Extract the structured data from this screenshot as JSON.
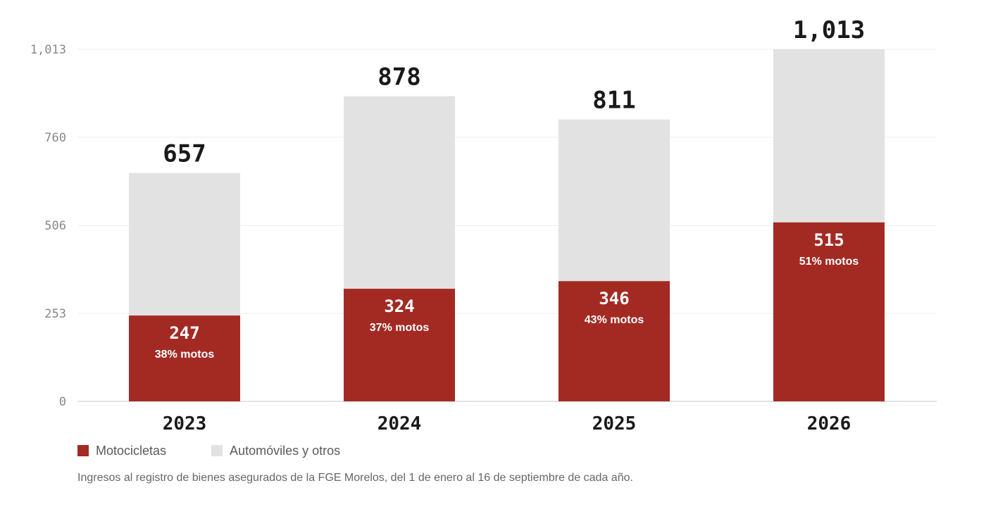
{
  "chart_data": {
    "type": "bar",
    "stacked": true,
    "categories": [
      "2023",
      "2024",
      "2025",
      "2026"
    ],
    "series": [
      {
        "name": "Motocicletas",
        "values": [
          247,
          324,
          346,
          515
        ],
        "color": "#a32a23"
      },
      {
        "name": "Automóviles y otros",
        "values": [
          410,
          554,
          465,
          498
        ],
        "color": "#e2e2e2"
      }
    ],
    "totals": [
      657,
      878,
      811,
      1013
    ],
    "total_labels": [
      "657",
      "878",
      "811",
      "1,013"
    ],
    "moto_labels": [
      "247",
      "324",
      "346",
      "515"
    ],
    "percent_labels": [
      "38% motos",
      "37% motos",
      "43% motos",
      "51% motos"
    ],
    "y_ticks": [
      0,
      253,
      506,
      760,
      1013
    ],
    "y_tick_labels": [
      "0",
      "253",
      "506",
      "760",
      "1,013"
    ],
    "ylim": [
      0,
      1013
    ],
    "grid": true,
    "legend_position": "bottom-left"
  },
  "legend": {
    "motos": "Motocicletas",
    "autos": "Automóviles y otros"
  },
  "note": "Ingresos al registro de bienes asegurados de la FGE Morelos, del 1 de enero al 16 de septiembre de cada año.",
  "colors": {
    "motos": "#a32a23",
    "autos": "#e2e2e2",
    "grid": "#ececec",
    "axis": "#d8d8d8",
    "tick_text": "#888888",
    "total_text": "#1a1a1a"
  }
}
